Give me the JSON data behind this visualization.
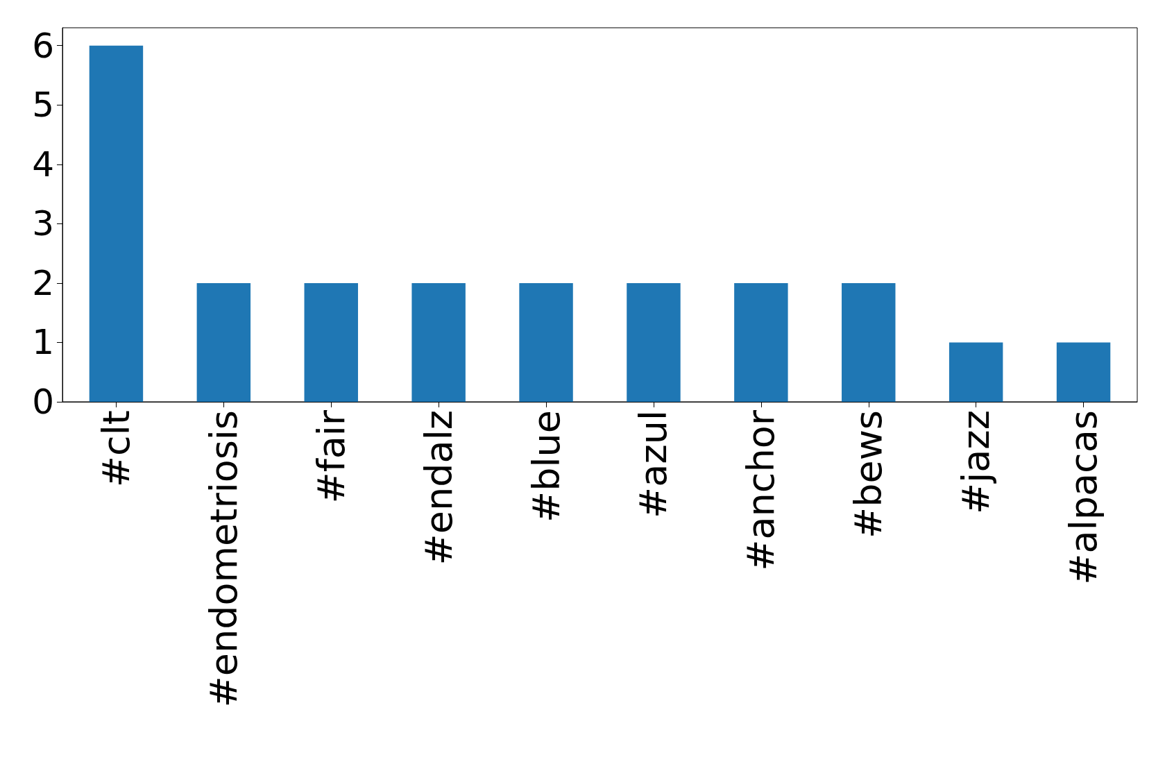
{
  "chart_data": {
    "type": "bar",
    "categories": [
      "#clt",
      "#endometriosis",
      "#fair",
      "#endalz",
      "#blue",
      "#azul",
      "#anchor",
      "#bews",
      "#jazz",
      "#alpacas"
    ],
    "values": [
      6,
      2,
      2,
      2,
      2,
      2,
      2,
      2,
      1,
      1
    ],
    "color": "#1f77b4",
    "ylim": [
      0,
      6.3
    ],
    "yticks": [
      0,
      1,
      2,
      3,
      4,
      5,
      6
    ]
  }
}
